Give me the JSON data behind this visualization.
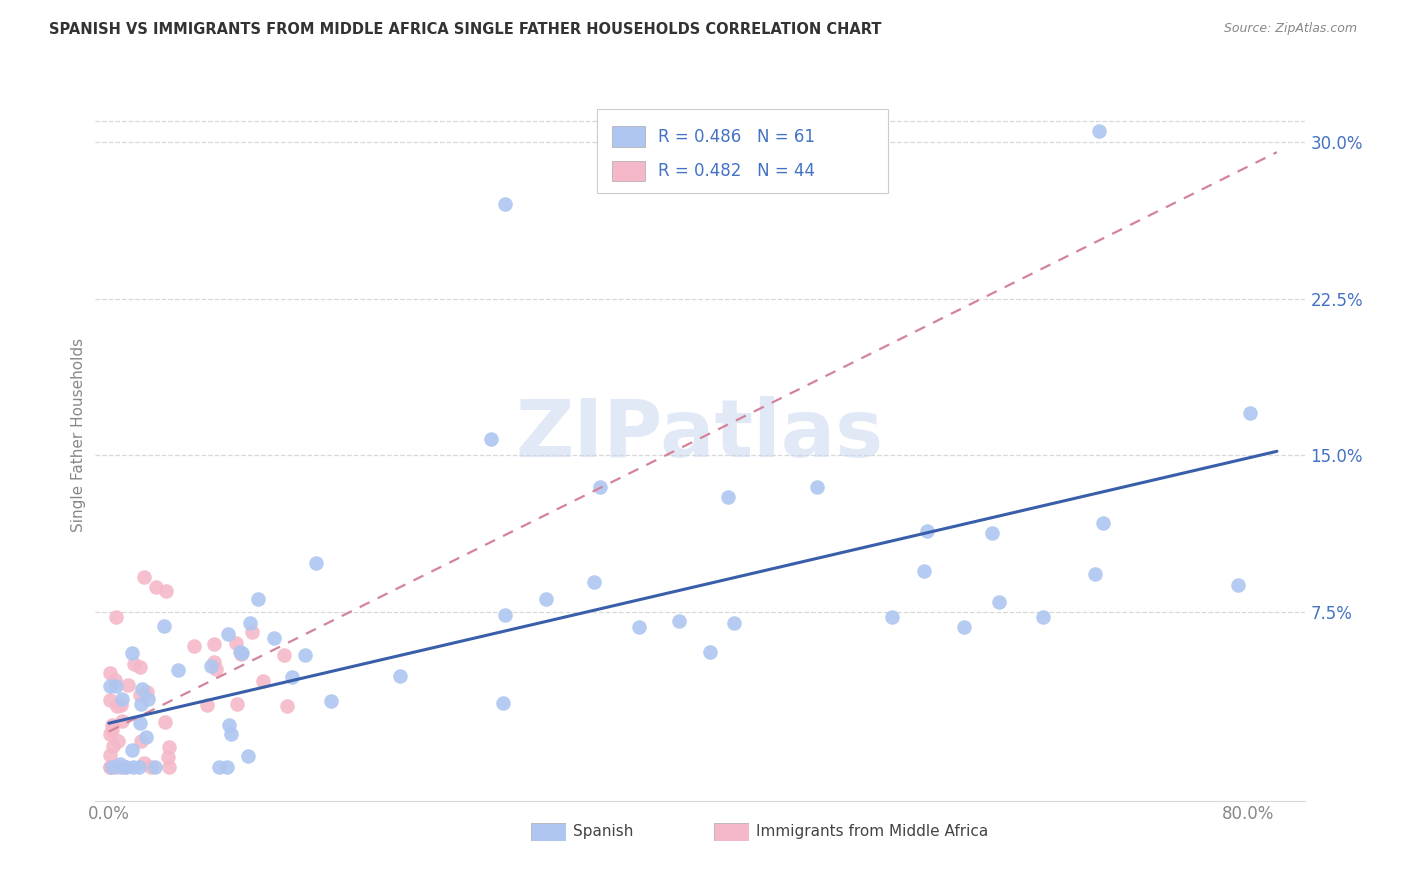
{
  "title": "SPANISH VS IMMIGRANTS FROM MIDDLE AFRICA SINGLE FATHER HOUSEHOLDS CORRELATION CHART",
  "source": "Source: ZipAtlas.com",
  "ylabel": "Single Father Households",
  "xlim": [
    -0.01,
    0.84
  ],
  "ylim": [
    -0.015,
    0.335
  ],
  "y_ticks": [
    0.075,
    0.15,
    0.225,
    0.3
  ],
  "y_tick_labels": [
    "7.5%",
    "15.0%",
    "22.5%",
    "30.0%"
  ],
  "x_ticks": [
    0.0,
    0.1,
    0.2,
    0.3,
    0.4,
    0.5,
    0.6,
    0.7,
    0.8
  ],
  "x_tick_labels": [
    "0.0%",
    "",
    "",
    "",
    "",
    "",
    "",
    "",
    "80.0%"
  ],
  "legend_labels": [
    "Spanish",
    "Immigrants from Middle Africa"
  ],
  "spanish_color": "#aec6f0",
  "immigrants_color": "#f4b8c8",
  "trendline_spanish_color": "#3a5faa",
  "trendline_immigrants_color": "#d4849a",
  "watermark": "ZIPatlas",
  "background_color": "#ffffff",
  "grid_color": "#d8d8d8",
  "legend_R1": "0.486",
  "legend_N1": "61",
  "legend_R2": "0.482",
  "legend_N2": "44",
  "legend_text_color": "#4472c4",
  "title_color": "#333333",
  "source_color": "#888888",
  "tick_color": "#4472c4",
  "xtick_color": "#888888",
  "ylabel_color": "#888888",
  "sp_trendline_start_x": 0.0,
  "sp_trendline_start_y": 0.022,
  "sp_trendline_end_x": 0.82,
  "sp_trendline_end_y": 0.152,
  "imm_trendline_start_x": 0.0,
  "imm_trendline_start_y": 0.018,
  "imm_trendline_end_x": 0.82,
  "imm_trendline_end_y": 0.295
}
